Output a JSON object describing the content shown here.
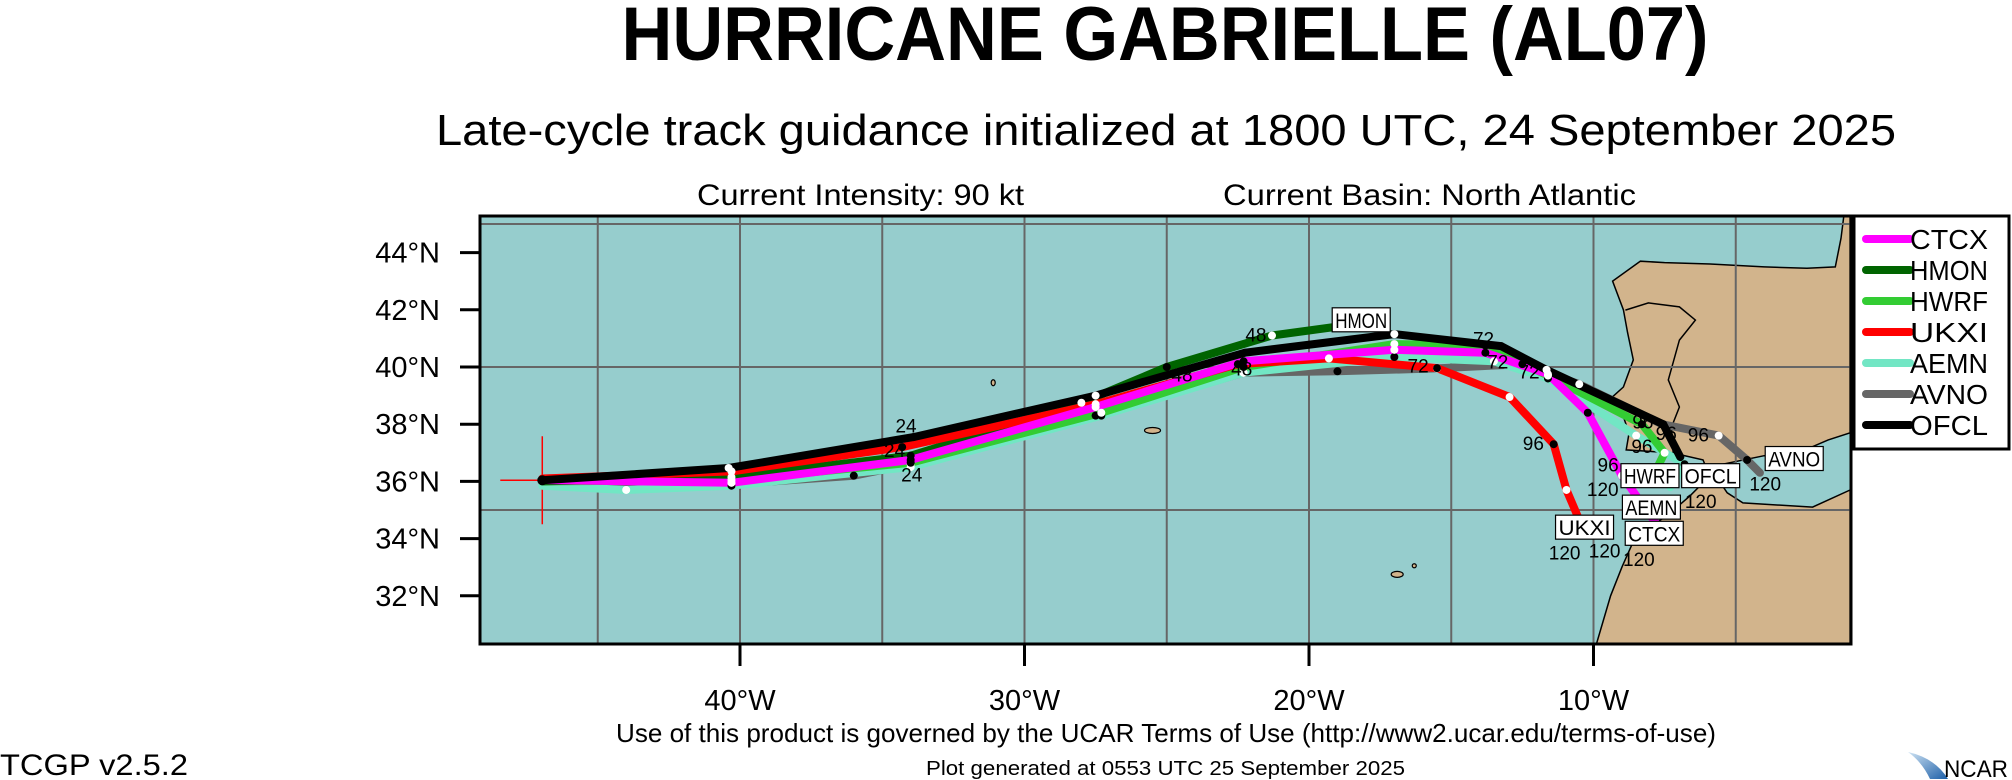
{
  "chart_data": {
    "type": "line",
    "title": "HURRICANE GABRIELLE (AL07)",
    "subtitle": "Late-cycle track guidance initialized at 1800 UTC, 24 September 2025",
    "info_left": "Current Intensity: 90 kt",
    "info_right": "Current Basin: North Atlantic",
    "xlim": [
      -49.1,
      -0.98
    ],
    "ylim": [
      30.3,
      45.3
    ],
    "grid": true,
    "grid_lon": [
      -45,
      -40,
      -35,
      -30,
      -25,
      -20,
      -15,
      -10,
      -5
    ],
    "grid_lat": [
      35,
      40,
      45
    ],
    "x_ticks": [
      {
        "lon": -40,
        "label": "40°W"
      },
      {
        "lon": -30,
        "label": "30°W"
      },
      {
        "lon": -20,
        "label": "20°W"
      },
      {
        "lon": -10,
        "label": "10°W"
      }
    ],
    "y_ticks": [
      {
        "lat": 44,
        "label": "44°N"
      },
      {
        "lat": 42,
        "label": "42°N"
      },
      {
        "lat": 40,
        "label": "40°N"
      },
      {
        "lat": 38,
        "label": "38°N"
      },
      {
        "lat": 36,
        "label": "36°N"
      },
      {
        "lat": 34,
        "label": "34°N"
      },
      {
        "lat": 32,
        "label": "32°N"
      }
    ],
    "legend_position": "right",
    "initial_position": [
      -46.95,
      36.04
    ],
    "series": [
      {
        "name": "AVNO",
        "color": "#666666",
        "label_at": [
          -2.98,
          36.8
        ],
        "points": [
          [
            -46.95,
            36.0
          ],
          [
            -40.3,
            35.9
          ],
          [
            -36,
            36.2
          ],
          [
            -34,
            36.6
          ],
          [
            -27.5,
            38.3
          ],
          [
            -22.3,
            39.8
          ],
          [
            -19,
            39.85
          ],
          [
            -15.5,
            39.95
          ],
          [
            -12.5,
            40.1
          ],
          [
            -10.5,
            39.4
          ],
          [
            -7.6,
            38.0
          ],
          [
            -5.6,
            37.6
          ],
          [
            -4.6,
            36.75
          ],
          [
            -4.15,
            36.3
          ]
        ]
      },
      {
        "name": "AEMN",
        "color": "#72e6c4",
        "label_at": [
          -8.0,
          35.1
        ],
        "points": [
          [
            -46.95,
            35.85
          ],
          [
            -44,
            35.7
          ],
          [
            -40.3,
            35.85
          ],
          [
            -34,
            36.5
          ],
          [
            -27.3,
            38.3
          ],
          [
            -22.3,
            39.8
          ],
          [
            -17,
            40.35
          ],
          [
            -13.5,
            40.2
          ],
          [
            -11.6,
            39.6
          ],
          [
            -8.5,
            37.6
          ],
          [
            -6.8,
            36.6
          ],
          [
            -7.3,
            35.8
          ]
        ]
      },
      {
        "name": "HWRF",
        "color": "#33cc33",
        "label_at": [
          -8.05,
          36.2
        ],
        "points": [
          [
            -46.95,
            36.0
          ],
          [
            -40.3,
            36.05
          ],
          [
            -34,
            36.65
          ],
          [
            -27.3,
            38.4
          ],
          [
            -22.3,
            40.0
          ],
          [
            -17,
            40.8
          ],
          [
            -13.8,
            40.75
          ],
          [
            -11.6,
            39.7
          ],
          [
            -8.3,
            38.0
          ],
          [
            -7.5,
            37.0
          ],
          [
            -7.8,
            36.4
          ]
        ]
      },
      {
        "name": "HMON",
        "color": "#006400",
        "label_at": [
          -18.2,
          41.65
        ],
        "points": [
          [
            -46.95,
            36.0
          ],
          [
            -40.3,
            36.15
          ],
          [
            -34,
            36.9
          ],
          [
            -28,
            38.75
          ],
          [
            -25,
            40.0
          ],
          [
            -21.3,
            41.1
          ],
          [
            -19.1,
            41.4
          ]
        ]
      },
      {
        "name": "UKXI",
        "color": "#ff0000",
        "label_at": [
          -10.35,
          34.4
        ],
        "points": [
          [
            -46.95,
            36.1
          ],
          [
            -40.3,
            36.35
          ],
          [
            -34.3,
            37.2
          ],
          [
            -27.5,
            38.7
          ],
          [
            -22.5,
            40.1
          ],
          [
            -19.3,
            40.3
          ],
          [
            -15.5,
            39.96
          ],
          [
            -12.95,
            38.95
          ],
          [
            -11.4,
            37.3
          ],
          [
            -10.95,
            35.7
          ],
          [
            -10.5,
            34.65
          ]
        ]
      },
      {
        "name": "CTCX",
        "color": "#ff00ff",
        "label_at": [
          -7.9,
          34.5
        ],
        "points": [
          [
            -46.95,
            36.05
          ],
          [
            -40.3,
            35.95
          ],
          [
            -34,
            36.75
          ],
          [
            -27.5,
            38.6
          ],
          [
            -22.3,
            40.2
          ],
          [
            -17,
            40.6
          ],
          [
            -13.8,
            40.5
          ],
          [
            -11.6,
            39.75
          ],
          [
            -10.2,
            38.4
          ],
          [
            -9.0,
            36.2
          ],
          [
            -7.7,
            34.4
          ]
        ]
      },
      {
        "name": "OFCL",
        "color": "#000000",
        "label_at": [
          -6.55,
          36.2
        ],
        "points": [
          [
            -46.95,
            36.04
          ],
          [
            -40.4,
            36.47
          ],
          [
            -33.9,
            37.55
          ],
          [
            -27.5,
            39.0
          ],
          [
            -22.25,
            40.5
          ],
          [
            -17.0,
            41.15
          ],
          [
            -13.25,
            40.73
          ],
          [
            -11.65,
            39.9
          ],
          [
            -7.55,
            38.0
          ],
          [
            -6.95,
            36.85
          ]
        ]
      }
    ],
    "legend_order": [
      "CTCX",
      "HMON",
      "HWRF",
      "UKXI",
      "AEMN",
      "AVNO",
      "OFCL"
    ],
    "hour_labels": [
      {
        "text": "24",
        "lon": -34.6,
        "lat": 36.85
      },
      {
        "text": "24",
        "lon": -34.2,
        "lat": 37.5
      },
      {
        "text": "24",
        "lon": -34.0,
        "lat": 36.2
      },
      {
        "text": "48",
        "lon": -21.9,
        "lat": 40.9
      },
      {
        "text": "48",
        "lon": -24.5,
        "lat": 39.5
      },
      {
        "text": "48",
        "lon": -22.4,
        "lat": 39.7
      },
      {
        "text": "72",
        "lon": -16.2,
        "lat": 39.8
      },
      {
        "text": "72",
        "lon": -12.3,
        "lat": 39.6
      },
      {
        "text": "72",
        "lon": -13.4,
        "lat": 39.95
      },
      {
        "text": "72",
        "lon": -13.9,
        "lat": 40.55
      },
      {
        "text": "96",
        "lon": -12.15,
        "lat": 37.1
      },
      {
        "text": "96",
        "lon": -8.3,
        "lat": 37.85
      },
      {
        "text": "96",
        "lon": -7.9,
        "lat": 37.45
      },
      {
        "text": "96",
        "lon": -7.7,
        "lat": 37.0
      },
      {
        "text": "96",
        "lon": -6.35,
        "lat": 37.4
      },
      {
        "text": "96",
        "lon": -9.1,
        "lat": 36.35
      },
      {
        "text": "120",
        "lon": -11.05,
        "lat": 34.0
      },
      {
        "text": "120",
        "lon": -8.55,
        "lat": 35.8
      },
      {
        "text": "120",
        "lon": -6.9,
        "lat": 35.8
      },
      {
        "text": "120",
        "lon": -8.8,
        "lat": 34.7
      },
      {
        "text": "120",
        "lon": -8.65,
        "lat": 34.3
      },
      {
        "text": "120",
        "lon": -4.0,
        "lat": 36.2
      }
    ]
  },
  "colors": {
    "ocean": "#96cdcd",
    "land": "#d2b48c",
    "grid": "#666666"
  },
  "footer": {
    "terms": "Use of this product is governed by the UCAR Terms of Use (http://www2.ucar.edu/terms-of-use)",
    "version": "TCGP v2.5.2",
    "generated": "Plot generated at 0553 UTC   25 September 2025",
    "logo_text": "NCAR"
  }
}
